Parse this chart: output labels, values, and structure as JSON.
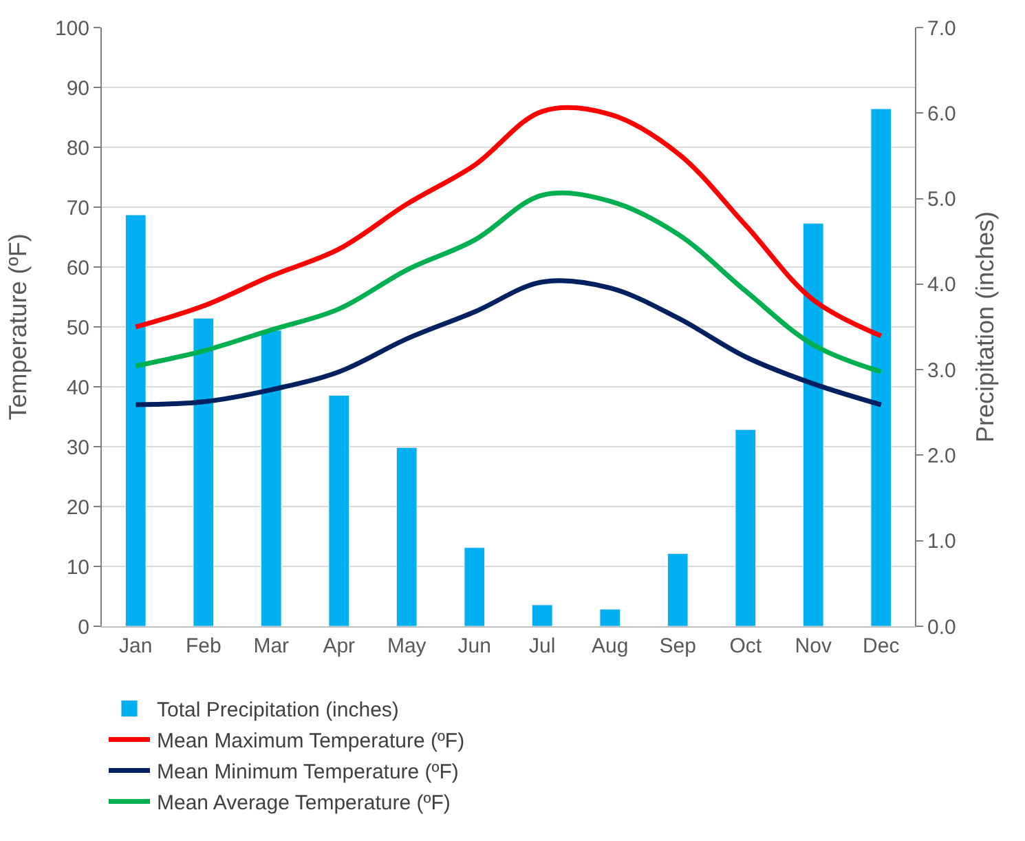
{
  "chart_data": {
    "type": "line",
    "categories": [
      "Jan",
      "Feb",
      "Mar",
      "Apr",
      "May",
      "Jun",
      "Jul",
      "Aug",
      "Sep",
      "Oct",
      "Nov",
      "Dec"
    ],
    "ylabel": "Temperature (ºF)",
    "y2label": "Precipitation (inches)",
    "series": [
      {
        "name": "Total Precipitation (inches)",
        "type": "bar",
        "axis": "y2",
        "color": "#00b0f0",
        "values": [
          4.81,
          3.6,
          3.46,
          2.7,
          2.09,
          0.92,
          0.25,
          0.2,
          0.85,
          2.3,
          4.71,
          6.05
        ]
      },
      {
        "name": "Mean Maximum Temperature (ºF)",
        "color": "#ff0000",
        "values": [
          50,
          53.5,
          58.5,
          63,
          70.5,
          77,
          86,
          85.5,
          79,
          67,
          54.5,
          48.5
        ]
      },
      {
        "name": "Mean Minimum Temperature (ºF)",
        "color": "#002060",
        "values": [
          37,
          37.5,
          39.5,
          42.5,
          48,
          52.5,
          57.5,
          56.5,
          51.5,
          45,
          40.5,
          37
        ]
      },
      {
        "name": "Mean Average Temperature (ºF)",
        "color": "#00b050",
        "values": [
          43.5,
          46,
          49.5,
          53,
          59.5,
          64.5,
          72,
          71,
          65.5,
          56,
          47,
          42.5
        ]
      }
    ],
    "ylim": [
      0,
      100
    ],
    "yticks": [
      0,
      10,
      20,
      30,
      40,
      50,
      60,
      70,
      80,
      90,
      100
    ],
    "y2lim": [
      0,
      7
    ],
    "y2ticks": [
      {
        "value": 0,
        "label": "0.0"
      },
      {
        "value": 1,
        "label": "1.0"
      },
      {
        "value": 2,
        "label": "2.0"
      },
      {
        "value": 3,
        "label": "3.0"
      },
      {
        "value": 4,
        "label": "4.0"
      },
      {
        "value": 5,
        "label": "5.0"
      },
      {
        "value": 6,
        "label": "6.0"
      },
      {
        "value": 7,
        "label": "7.0"
      }
    ],
    "grid": "y",
    "legend": "bottom",
    "marker": "none",
    "line_style": "solid"
  }
}
